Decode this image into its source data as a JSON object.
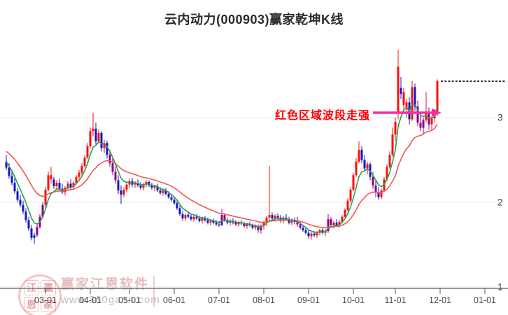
{
  "title": "云内动力(000903)赢家乾坤K线",
  "annotation": {
    "text": "红色区域波段走强",
    "text_color": "#ff0000",
    "arrow_color": "#ff2ba4"
  },
  "watermark": {
    "logo_chars": [
      "江",
      "赢",
      "恩",
      "家"
    ],
    "brand": "赢家江恩软件",
    "url": "www.360gann.com"
  },
  "colors": {
    "up": "#fe0d0d",
    "down": "#1414cc",
    "signal": "#8b008b",
    "ma_fast": "#2d9e4f",
    "ma_slow": "#f15656",
    "grid": "#e8e8e8",
    "axis": "#5a5a5a",
    "dashed": "#141414",
    "tick_label": "#4a4a4a"
  },
  "chart_data": {
    "type": "candlestick",
    "name": "云内动力",
    "symbol": "000903",
    "title": "云内动力(000903)赢家乾坤K线",
    "ylim": [
      0.95,
      3.95
    ],
    "grid": "horizontal-only",
    "legend": "none",
    "dashed_line_price": 3.43,
    "y_ticks": [
      {
        "label": "3",
        "price": 3
      },
      {
        "label": "2",
        "price": 2
      },
      {
        "label": "1",
        "price": 1
      }
    ],
    "x_ticks": [
      {
        "label": "03-01",
        "i": 14
      },
      {
        "label": "04-01",
        "i": 30
      },
      {
        "label": "05-01",
        "i": 44
      },
      {
        "label": "06-01",
        "i": 60
      },
      {
        "label": "07-01",
        "i": 76
      },
      {
        "label": "08-01",
        "i": 92
      },
      {
        "label": "09-01",
        "i": 108
      },
      {
        "label": "10-01",
        "i": 124
      },
      {
        "label": "11-01",
        "i": 139
      },
      {
        "label": "12-01",
        "i": 155
      },
      {
        "label": "01-01",
        "i": 171
      }
    ],
    "ma": {
      "fast_period": 6,
      "fast_seed": 2.5,
      "slow_period": 21,
      "slow_seed": 2.62
    },
    "candles": [
      [
        2.48,
        2.56,
        2.38,
        2.41,
        "d"
      ],
      [
        2.41,
        2.46,
        2.28,
        2.31,
        "d"
      ],
      [
        2.31,
        2.36,
        2.2,
        2.23,
        "d"
      ],
      [
        2.23,
        2.28,
        2.1,
        2.13,
        "d"
      ],
      [
        2.13,
        2.17,
        2.0,
        2.03,
        "d"
      ],
      [
        2.03,
        2.09,
        1.94,
        1.97,
        "d"
      ],
      [
        1.97,
        2.02,
        1.86,
        1.89,
        "d"
      ],
      [
        1.89,
        1.93,
        1.76,
        1.79,
        "d"
      ],
      [
        1.79,
        1.83,
        1.66,
        1.69,
        "d"
      ],
      [
        1.69,
        1.73,
        1.55,
        1.58,
        "d"
      ],
      [
        1.58,
        1.64,
        1.51,
        1.61,
        "d"
      ],
      [
        1.61,
        1.74,
        1.59,
        1.71,
        "p"
      ],
      [
        1.71,
        1.86,
        1.69,
        1.83,
        "p"
      ],
      [
        1.83,
        2.0,
        1.81,
        1.97,
        "p"
      ],
      [
        1.97,
        2.18,
        1.95,
        2.15,
        "u"
      ],
      [
        2.15,
        2.36,
        2.13,
        2.32,
        "u"
      ],
      [
        2.32,
        2.42,
        2.22,
        2.27,
        "u"
      ],
      [
        2.27,
        2.3,
        2.16,
        2.19,
        "d"
      ],
      [
        2.19,
        2.26,
        2.15,
        2.23,
        "u"
      ],
      [
        2.23,
        2.28,
        2.13,
        2.16,
        "d"
      ],
      [
        2.16,
        2.22,
        2.1,
        2.12,
        "d"
      ],
      [
        2.12,
        2.19,
        2.08,
        2.17,
        "u"
      ],
      [
        2.17,
        2.25,
        2.14,
        2.22,
        "u"
      ],
      [
        2.22,
        2.27,
        2.15,
        2.18,
        "d"
      ],
      [
        2.18,
        2.25,
        2.15,
        2.23,
        "u"
      ],
      [
        2.23,
        2.32,
        2.21,
        2.3,
        "u"
      ],
      [
        2.3,
        2.38,
        2.27,
        2.35,
        "u"
      ],
      [
        2.35,
        2.46,
        2.32,
        2.43,
        "u"
      ],
      [
        2.43,
        2.56,
        2.41,
        2.53,
        "u"
      ],
      [
        2.53,
        2.7,
        2.51,
        2.66,
        "u"
      ],
      [
        2.66,
        2.88,
        2.64,
        2.84,
        "u"
      ],
      [
        2.84,
        3.06,
        2.78,
        2.87,
        "u"
      ],
      [
        2.87,
        2.94,
        2.68,
        2.72,
        "d"
      ],
      [
        2.72,
        2.86,
        2.7,
        2.82,
        "u"
      ],
      [
        2.82,
        2.84,
        2.6,
        2.64,
        "d"
      ],
      [
        2.64,
        2.74,
        2.58,
        2.7,
        "u"
      ],
      [
        2.7,
        2.73,
        2.52,
        2.56,
        "d"
      ],
      [
        2.56,
        2.62,
        2.42,
        2.46,
        "p"
      ],
      [
        2.46,
        2.52,
        2.32,
        2.36,
        "p"
      ],
      [
        2.36,
        2.42,
        2.22,
        2.26,
        "p"
      ],
      [
        2.26,
        2.32,
        2.1,
        2.14,
        "d"
      ],
      [
        2.14,
        2.2,
        1.98,
        2.09,
        "d"
      ],
      [
        2.09,
        2.18,
        2.06,
        2.15,
        "u"
      ],
      [
        2.15,
        2.24,
        2.12,
        2.21,
        "u"
      ],
      [
        2.21,
        2.28,
        2.17,
        2.25,
        "u"
      ],
      [
        2.25,
        2.29,
        2.18,
        2.21,
        "d"
      ],
      [
        2.21,
        2.25,
        2.17,
        2.23,
        "u"
      ],
      [
        2.23,
        2.27,
        2.18,
        2.2,
        "d"
      ],
      [
        2.2,
        2.24,
        2.15,
        2.17,
        "d"
      ],
      [
        2.17,
        2.23,
        2.14,
        2.21,
        "u"
      ],
      [
        2.21,
        2.26,
        2.18,
        2.24,
        "u"
      ],
      [
        2.24,
        2.26,
        2.18,
        2.2,
        "d"
      ],
      [
        2.2,
        2.23,
        2.15,
        2.17,
        "d"
      ],
      [
        2.17,
        2.21,
        2.13,
        2.19,
        "u"
      ],
      [
        2.19,
        2.22,
        2.12,
        2.14,
        "d"
      ],
      [
        2.14,
        2.18,
        2.09,
        2.11,
        "d"
      ],
      [
        2.11,
        2.16,
        2.08,
        2.14,
        "u"
      ],
      [
        2.14,
        2.17,
        2.08,
        2.1,
        "d"
      ],
      [
        2.1,
        2.13,
        2.04,
        2.06,
        "d"
      ],
      [
        2.06,
        2.1,
        2.01,
        2.03,
        "d"
      ],
      [
        2.03,
        2.06,
        1.97,
        1.99,
        "d"
      ],
      [
        1.99,
        2.02,
        1.91,
        1.93,
        "d"
      ],
      [
        1.93,
        1.96,
        1.84,
        1.86,
        "d"
      ],
      [
        1.86,
        1.9,
        1.78,
        1.81,
        "d"
      ],
      [
        1.81,
        1.87,
        1.78,
        1.85,
        "u"
      ],
      [
        1.85,
        1.89,
        1.81,
        1.83,
        "d"
      ],
      [
        1.83,
        1.87,
        1.78,
        1.8,
        "d"
      ],
      [
        1.8,
        1.85,
        1.77,
        1.83,
        "u"
      ],
      [
        1.83,
        1.86,
        1.79,
        1.81,
        "d"
      ],
      [
        1.81,
        1.84,
        1.76,
        1.78,
        "d"
      ],
      [
        1.78,
        1.83,
        1.75,
        1.81,
        "u"
      ],
      [
        1.81,
        1.84,
        1.77,
        1.79,
        "d"
      ],
      [
        1.79,
        1.82,
        1.74,
        1.76,
        "d"
      ],
      [
        1.76,
        1.8,
        1.73,
        1.78,
        "u"
      ],
      [
        1.78,
        1.81,
        1.74,
        1.76,
        "d"
      ],
      [
        1.76,
        1.79,
        1.72,
        1.74,
        "d"
      ],
      [
        1.74,
        1.78,
        1.71,
        1.73,
        "d"
      ],
      [
        1.73,
        1.92,
        1.72,
        1.85,
        "p"
      ],
      [
        1.85,
        1.87,
        1.77,
        1.79,
        "p"
      ],
      [
        1.79,
        1.82,
        1.74,
        1.76,
        "d"
      ],
      [
        1.76,
        1.8,
        1.73,
        1.78,
        "u"
      ],
      [
        1.78,
        1.81,
        1.74,
        1.76,
        "d"
      ],
      [
        1.76,
        1.79,
        1.72,
        1.74,
        "d"
      ],
      [
        1.74,
        1.78,
        1.71,
        1.76,
        "u"
      ],
      [
        1.76,
        1.79,
        1.73,
        1.75,
        "d"
      ],
      [
        1.75,
        1.77,
        1.7,
        1.72,
        "d"
      ],
      [
        1.72,
        1.76,
        1.69,
        1.74,
        "u"
      ],
      [
        1.74,
        1.77,
        1.71,
        1.73,
        "d"
      ],
      [
        1.73,
        1.75,
        1.68,
        1.7,
        "d"
      ],
      [
        1.7,
        1.74,
        1.67,
        1.72,
        "u"
      ],
      [
        1.72,
        1.74,
        1.64,
        1.67,
        "p"
      ],
      [
        1.67,
        1.74,
        1.63,
        1.72,
        "p"
      ],
      [
        1.72,
        1.78,
        1.68,
        1.76,
        "u"
      ],
      [
        1.76,
        1.84,
        1.72,
        1.82,
        "u"
      ],
      [
        1.82,
        2.43,
        1.78,
        1.85,
        "u"
      ],
      [
        1.85,
        1.88,
        1.78,
        1.81,
        "d"
      ],
      [
        1.81,
        1.86,
        1.77,
        1.84,
        "u"
      ],
      [
        1.84,
        1.87,
        1.79,
        1.82,
        "d"
      ],
      [
        1.82,
        1.85,
        1.76,
        1.78,
        "d"
      ],
      [
        1.78,
        1.84,
        1.75,
        1.82,
        "u"
      ],
      [
        1.82,
        1.86,
        1.78,
        1.8,
        "d"
      ],
      [
        1.8,
        1.83,
        1.74,
        1.76,
        "d"
      ],
      [
        1.76,
        1.81,
        1.73,
        1.79,
        "u"
      ],
      [
        1.79,
        1.82,
        1.74,
        1.77,
        "d"
      ],
      [
        1.77,
        1.83,
        1.71,
        1.74,
        "p"
      ],
      [
        1.74,
        1.77,
        1.68,
        1.7,
        "p"
      ],
      [
        1.7,
        1.73,
        1.65,
        1.67,
        "d"
      ],
      [
        1.67,
        1.7,
        1.62,
        1.64,
        "d"
      ],
      [
        1.64,
        1.67,
        1.57,
        1.6,
        "d"
      ],
      [
        1.6,
        1.65,
        1.56,
        1.63,
        "u"
      ],
      [
        1.63,
        1.66,
        1.59,
        1.61,
        "d"
      ],
      [
        1.61,
        1.66,
        1.58,
        1.64,
        "u"
      ],
      [
        1.64,
        1.69,
        1.61,
        1.67,
        "u"
      ],
      [
        1.67,
        1.7,
        1.62,
        1.64,
        "d"
      ],
      [
        1.64,
        1.68,
        1.6,
        1.66,
        "u"
      ],
      [
        1.66,
        1.86,
        1.64,
        1.8,
        "p"
      ],
      [
        1.8,
        1.83,
        1.7,
        1.73,
        "p"
      ],
      [
        1.73,
        1.78,
        1.69,
        1.76,
        "u"
      ],
      [
        1.76,
        1.8,
        1.71,
        1.73,
        "d"
      ],
      [
        1.73,
        1.79,
        1.7,
        1.77,
        "u"
      ],
      [
        1.77,
        1.85,
        1.75,
        1.83,
        "u"
      ],
      [
        1.83,
        1.93,
        1.81,
        1.91,
        "u"
      ],
      [
        1.91,
        2.05,
        1.89,
        2.02,
        "u"
      ],
      [
        2.02,
        2.18,
        2.0,
        2.15,
        "u"
      ],
      [
        2.15,
        2.35,
        2.13,
        2.32,
        "u"
      ],
      [
        2.32,
        2.52,
        2.3,
        2.48,
        "u"
      ],
      [
        2.48,
        2.72,
        2.46,
        2.62,
        "u"
      ],
      [
        2.62,
        2.66,
        2.46,
        2.5,
        "d"
      ],
      [
        2.5,
        2.56,
        2.36,
        2.4,
        "d"
      ],
      [
        2.4,
        2.48,
        2.33,
        2.45,
        "u"
      ],
      [
        2.45,
        2.47,
        2.26,
        2.3,
        "d"
      ],
      [
        2.3,
        2.36,
        2.16,
        2.2,
        "p"
      ],
      [
        2.2,
        2.26,
        2.06,
        2.12,
        "p"
      ],
      [
        2.12,
        2.18,
        2.03,
        2.06,
        "d"
      ],
      [
        2.06,
        2.16,
        2.04,
        2.14,
        "u"
      ],
      [
        2.14,
        2.3,
        2.12,
        2.27,
        "u"
      ],
      [
        2.27,
        2.45,
        2.25,
        2.42,
        "u"
      ],
      [
        2.42,
        2.6,
        2.4,
        2.56,
        "u"
      ],
      [
        2.56,
        2.88,
        2.54,
        2.8,
        "u"
      ],
      [
        2.8,
        3.0,
        2.72,
        2.95,
        "u"
      ],
      [
        3.05,
        3.8,
        2.98,
        3.6,
        "u"
      ],
      [
        3.35,
        3.48,
        3.22,
        3.28,
        "d"
      ],
      [
        3.15,
        3.35,
        3.1,
        3.3,
        "u"
      ],
      [
        3.1,
        3.22,
        3.0,
        3.18,
        "u"
      ],
      [
        3.18,
        3.24,
        2.92,
        2.98,
        "d"
      ],
      [
        2.98,
        3.43,
        2.96,
        3.36,
        "u"
      ],
      [
        3.36,
        3.4,
        3.08,
        3.13,
        "d"
      ],
      [
        3.13,
        3.2,
        2.9,
        2.94,
        "p"
      ],
      [
        2.94,
        3.05,
        2.84,
        2.88,
        "p"
      ],
      [
        2.88,
        3.0,
        2.8,
        2.97,
        "p"
      ],
      [
        2.97,
        3.3,
        2.94,
        3.06,
        "u"
      ],
      [
        3.06,
        3.12,
        2.86,
        2.92,
        "p"
      ],
      [
        2.92,
        3.02,
        2.85,
        2.99,
        "u"
      ],
      [
        2.99,
        3.1,
        2.94,
        3.06,
        "u"
      ],
      [
        3.06,
        3.45,
        3.02,
        3.43,
        "u"
      ]
    ]
  }
}
